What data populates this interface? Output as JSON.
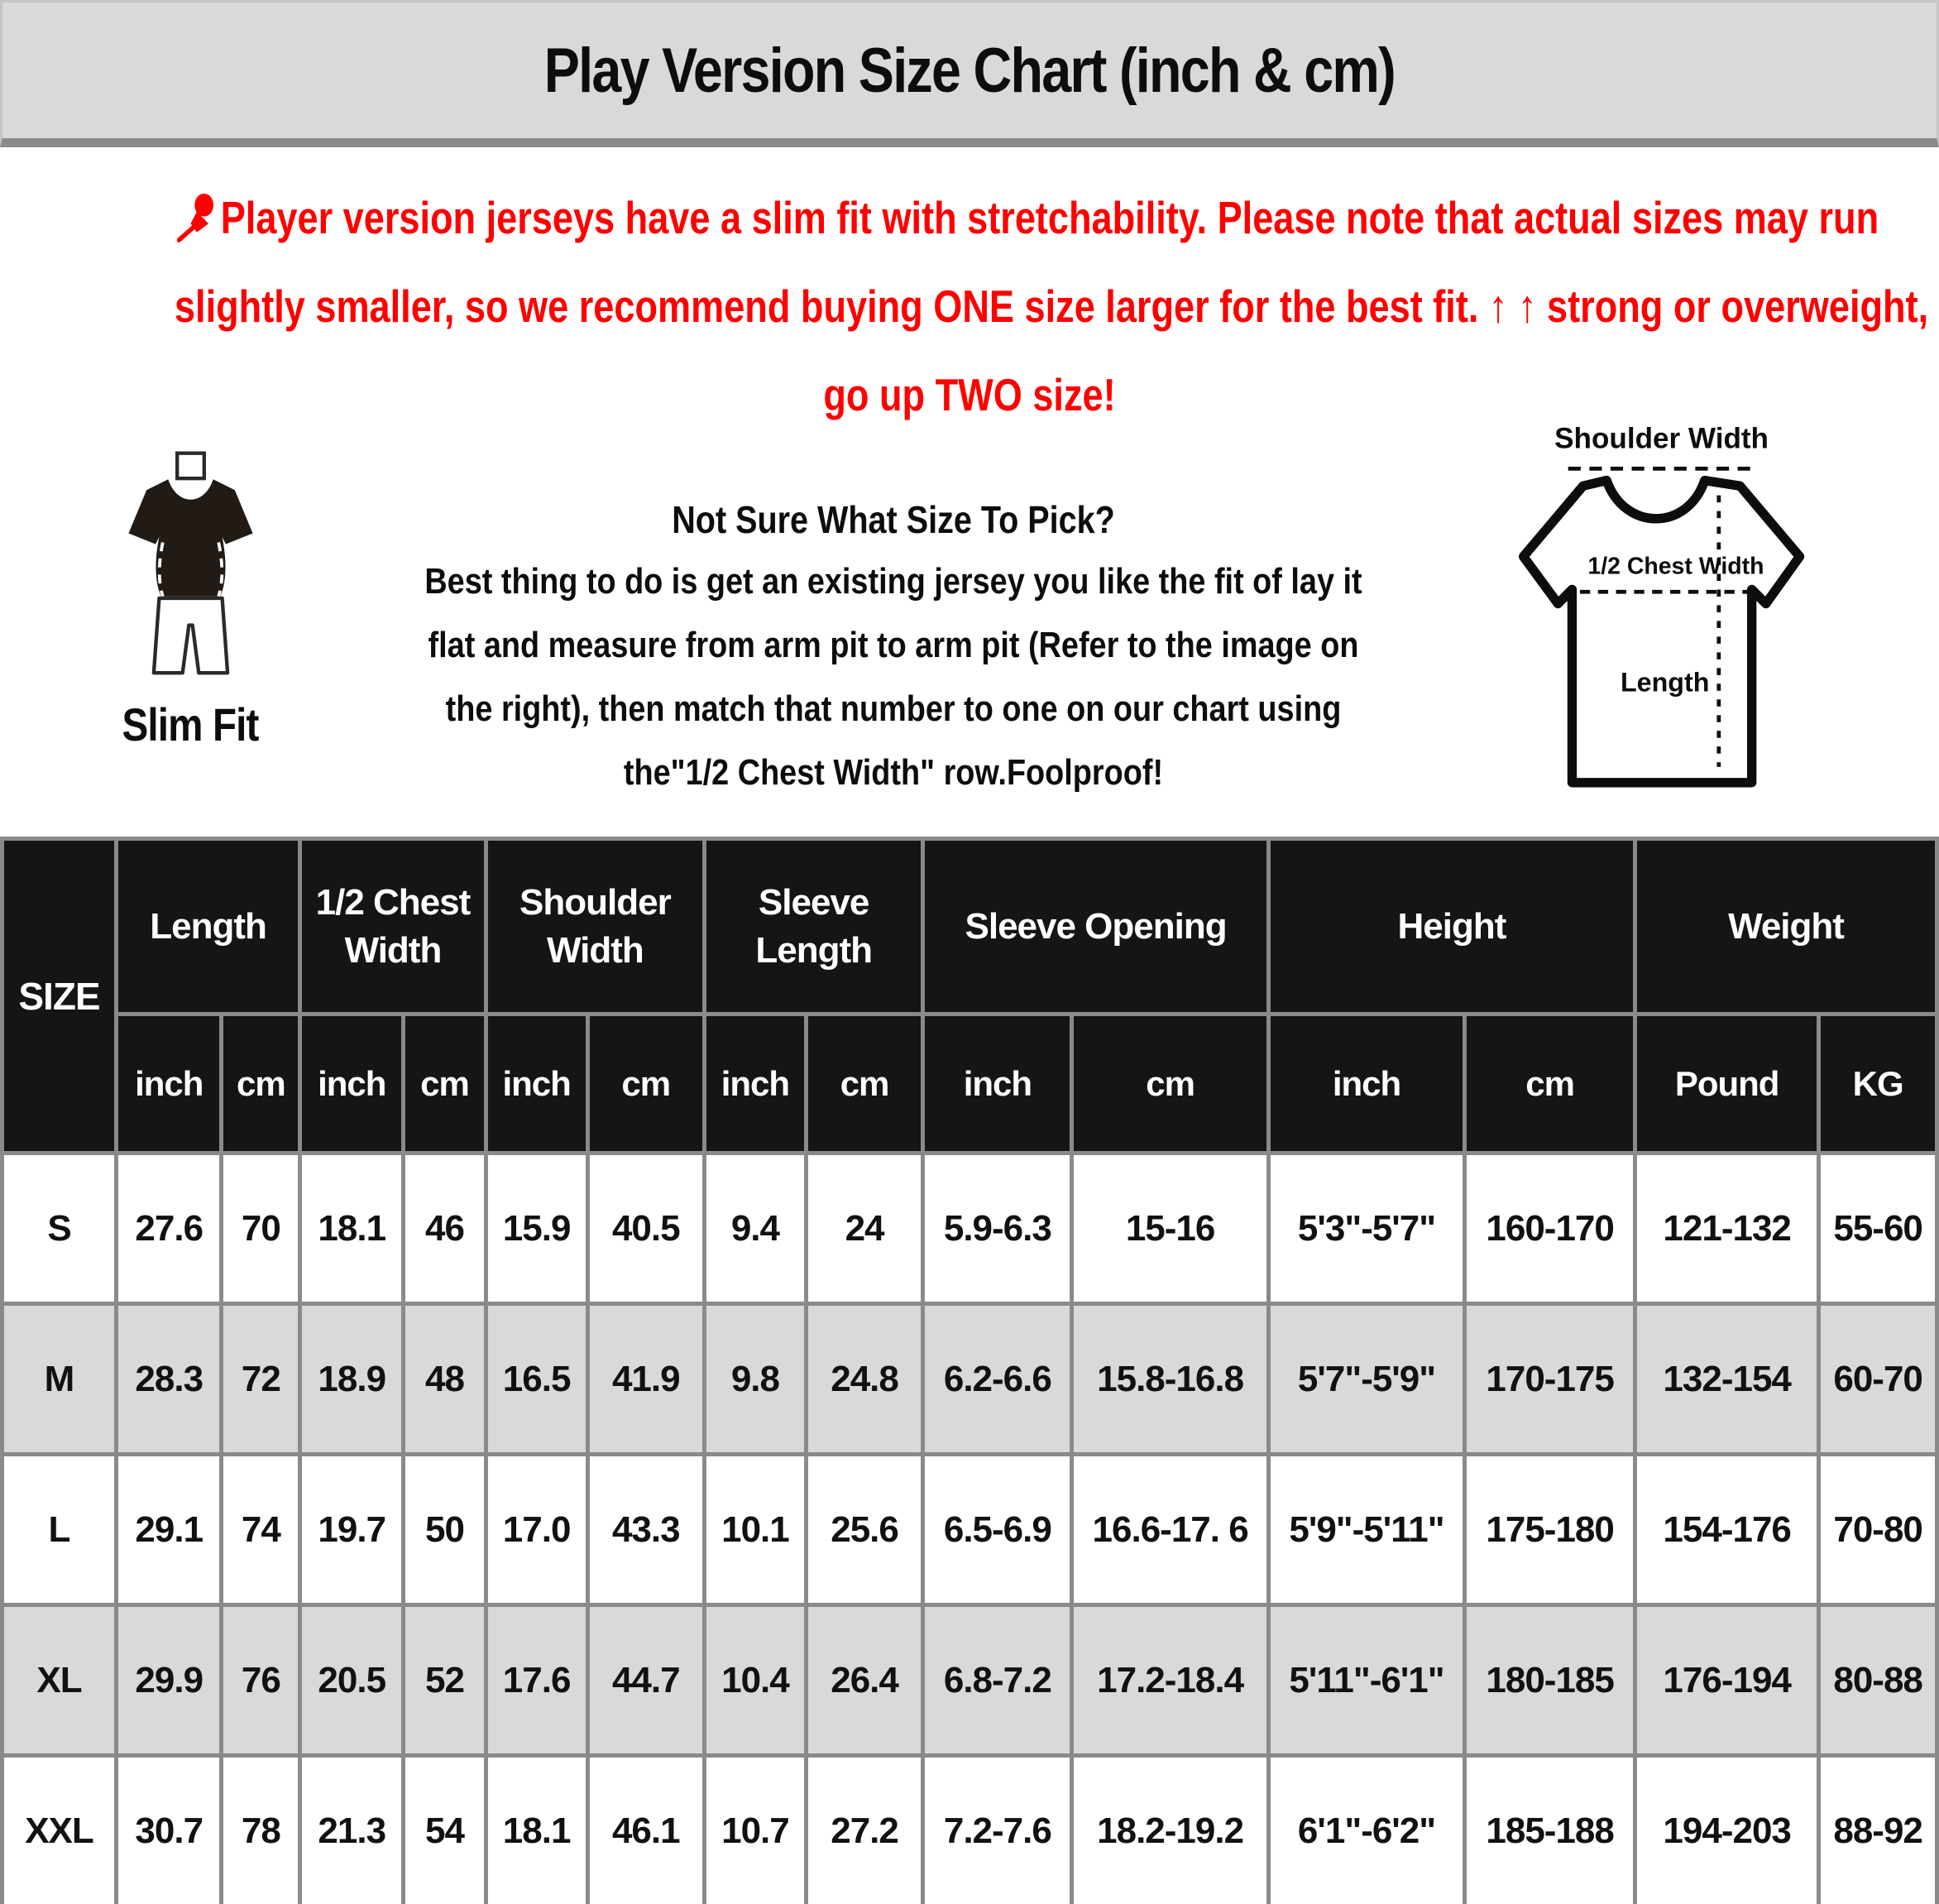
{
  "title": "Play Version Size Chart (inch & cm)",
  "colors": {
    "accent_red": "#FE0000",
    "titlebar_bg": "#D9D9D9",
    "table_header_bg": "#151515",
    "row_shade": "#D9D9D9",
    "border_gray": "#8A8A8A"
  },
  "icons": {
    "notice_pin": "pushpin-icon",
    "up_arrows": "↑ ↑"
  },
  "notice": {
    "line1": "Player version jerseys have a slim fit with stretchability. Please note that actual sizes may run",
    "line2": "slightly smaller, so we recommend buying ONE size larger for the best fit. ↑ ↑ strong or overweight,",
    "line3": "go up TWO size!"
  },
  "guide": {
    "slim_fit_label": "Slim Fit",
    "heading": "Not Sure What Size To Pick?",
    "body_lines": [
      "Best thing to do is get an existing jersey you like the fit of lay it",
      "flat and measure from arm pit to arm pit (Refer to the image on",
      "the right), then match that number to one on our chart using",
      "the\"1/2 Chest Width\" row.Foolproof!"
    ],
    "diagram_labels": {
      "shoulder_width": "Shoulder Width",
      "half_chest_width": "1/2 Chest Width",
      "length": "Length"
    }
  },
  "table": {
    "size_header": "SIZE",
    "groups": [
      {
        "label": "Length",
        "units": [
          "inch",
          "cm"
        ]
      },
      {
        "label": "1/2 Chest Width",
        "units": [
          "inch",
          "cm"
        ]
      },
      {
        "label": "Shoulder Width",
        "units": [
          "inch",
          "cm"
        ]
      },
      {
        "label": "Sleeve Length",
        "units": [
          "inch",
          "cm"
        ]
      },
      {
        "label": "Sleeve Opening",
        "units": [
          "inch",
          "cm"
        ]
      },
      {
        "label": "Height",
        "units": [
          "inch",
          "cm"
        ]
      },
      {
        "label": "Weight",
        "units": [
          "Pound",
          "KG"
        ]
      }
    ],
    "rows": [
      {
        "size": "S",
        "values": [
          "27.6",
          "70",
          "18.1",
          "46",
          "15.9",
          "40.5",
          "9.4",
          "24",
          "5.9-6.3",
          "15-16",
          "5'3\"-5'7\"",
          "160-170",
          "121-132",
          "55-60"
        ]
      },
      {
        "size": "M",
        "values": [
          "28.3",
          "72",
          "18.9",
          "48",
          "16.5",
          "41.9",
          "9.8",
          "24.8",
          "6.2-6.6",
          "15.8-16.8",
          "5'7\"-5'9\"",
          "170-175",
          "132-154",
          "60-70"
        ]
      },
      {
        "size": "L",
        "values": [
          "29.1",
          "74",
          "19.7",
          "50",
          "17.0",
          "43.3",
          "10.1",
          "25.6",
          "6.5-6.9",
          "16.6-17. 6",
          "5'9\"-5'11\"",
          "175-180",
          "154-176",
          "70-80"
        ]
      },
      {
        "size": "XL",
        "values": [
          "29.9",
          "76",
          "20.5",
          "52",
          "17.6",
          "44.7",
          "10.4",
          "26.4",
          "6.8-7.2",
          "17.2-18.4",
          "5'11\"-6'1\"",
          "180-185",
          "176-194",
          "80-88"
        ]
      },
      {
        "size": "XXL",
        "values": [
          "30.7",
          "78",
          "21.3",
          "54",
          "18.1",
          "46.1",
          "10.7",
          "27.2",
          "7.2-7.6",
          "18.2-19.2",
          "6'1\"-6'2\"",
          "185-188",
          "194-203",
          "88-92"
        ]
      }
    ]
  }
}
